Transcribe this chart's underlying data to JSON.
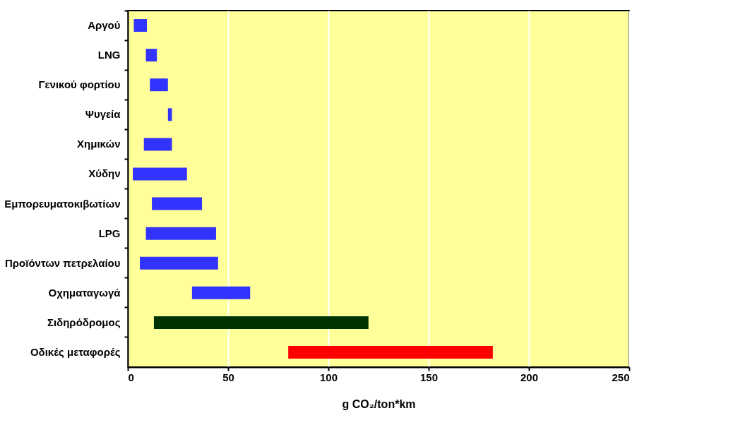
{
  "chart_data": {
    "type": "bar",
    "orientation": "horizontal",
    "xlabel": "g CO₂/ton*km",
    "categories": [
      "Αργού",
      "LNG",
      "Γενικού φορτίου",
      "Ψυγεία",
      "Χημικών",
      "Χύδην",
      "Εμπορευματοκιβωτίων",
      "LPG",
      "Προϊόντων πετρελαίου",
      "Οχηματαγωγά",
      "Σιδηρόδρομος",
      "Οδικές μεταφορές"
    ],
    "base": [
      3,
      9,
      11,
      20,
      8,
      2.5,
      12,
      9,
      6,
      32,
      13,
      80
    ],
    "values": [
      6.5,
      5.5,
      9,
      2,
      14,
      27,
      25,
      35,
      39,
      29,
      107,
      102
    ],
    "colors": [
      "#3333ff",
      "#3333ff",
      "#3333ff",
      "#3333ff",
      "#3333ff",
      "#3333ff",
      "#3333ff",
      "#3333ff",
      "#3333ff",
      "#3333ff",
      "#003300",
      "#ff0000"
    ],
    "xlim": [
      0,
      250
    ],
    "xticks": [
      0,
      50,
      100,
      150,
      200,
      250
    ],
    "grid": "x",
    "legend": false
  }
}
